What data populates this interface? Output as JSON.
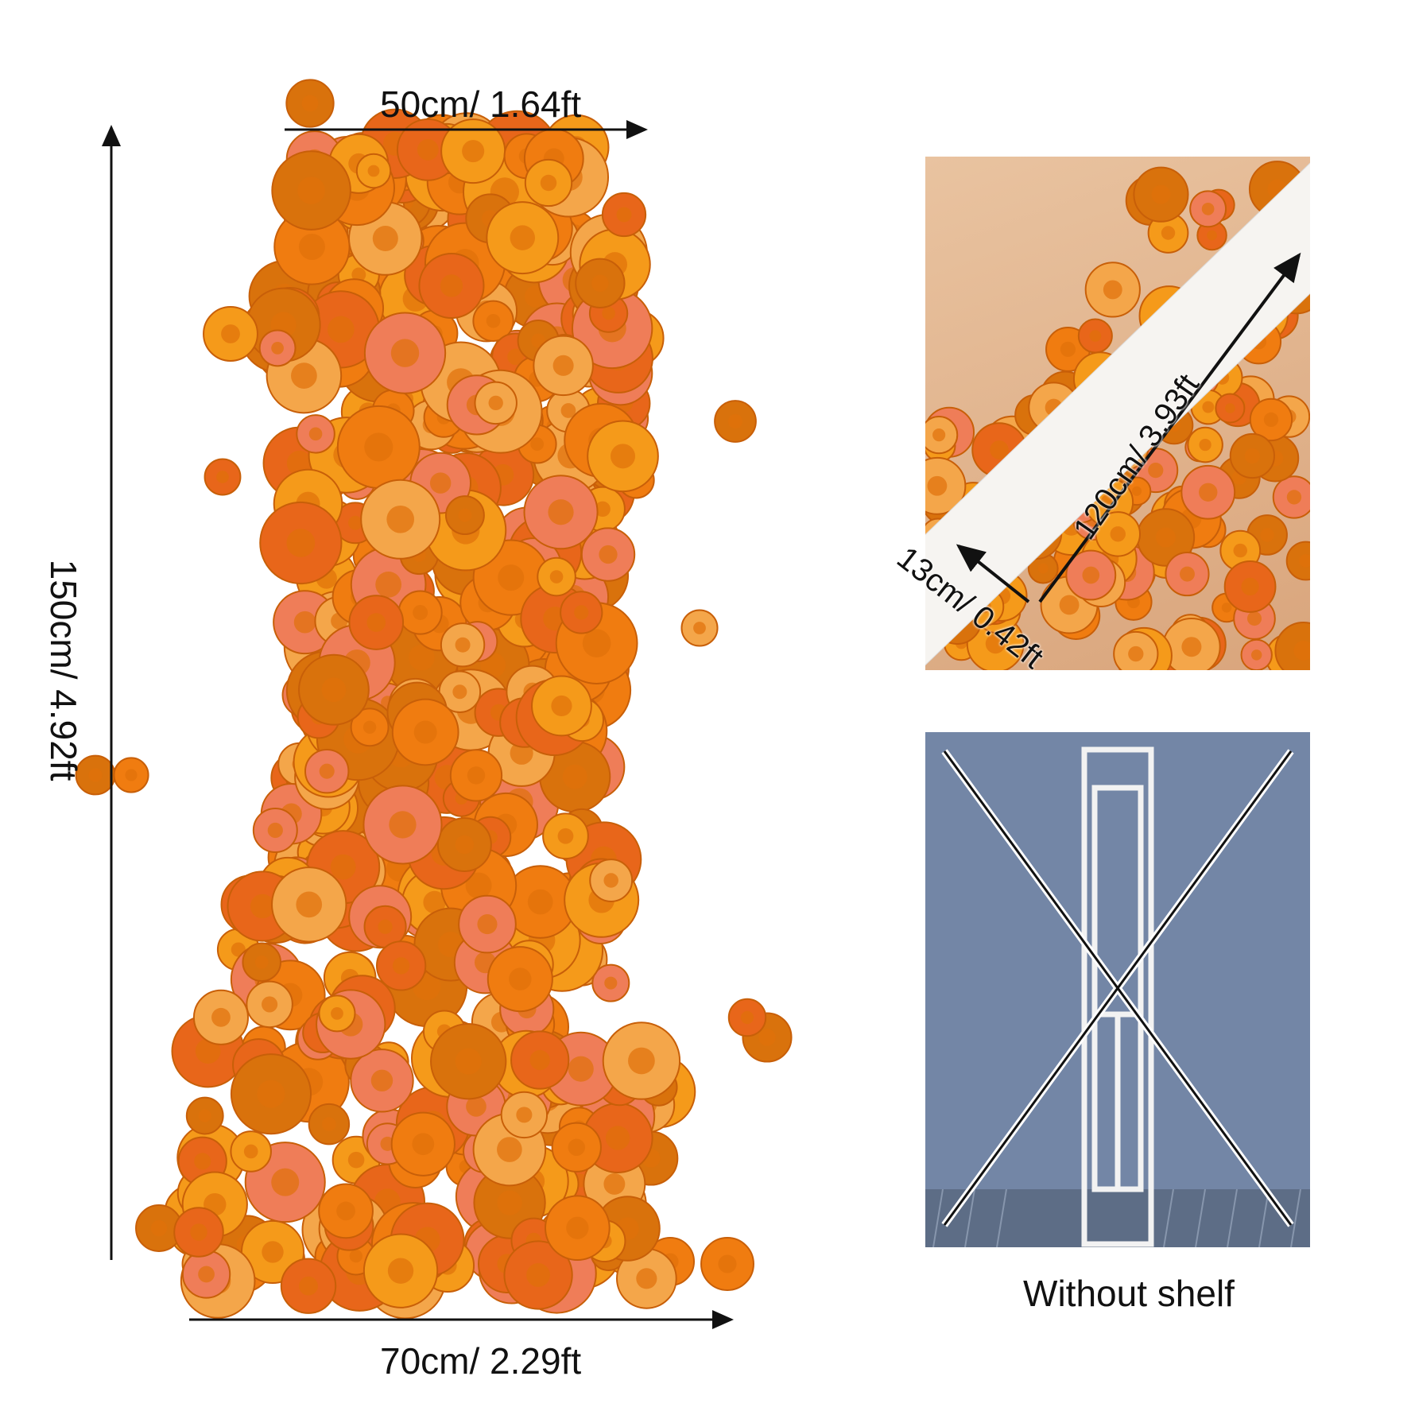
{
  "main_product": {
    "width_top": "50cm/ 1.64ft",
    "height": "150cm/ 4.92ft",
    "width_bottom": "70cm/ 2.29ft",
    "colors": [
      "#f07c10",
      "#f59a1a",
      "#e8661a",
      "#f4a64a",
      "#ef7d58",
      "#d9720c"
    ]
  },
  "foam_photo": {
    "length": "120cm/ 3.93ft",
    "width": "13cm/ 0.42ft"
  },
  "shelf_photo": {
    "caption": "Without shelf",
    "background_color": "#7386a6"
  }
}
